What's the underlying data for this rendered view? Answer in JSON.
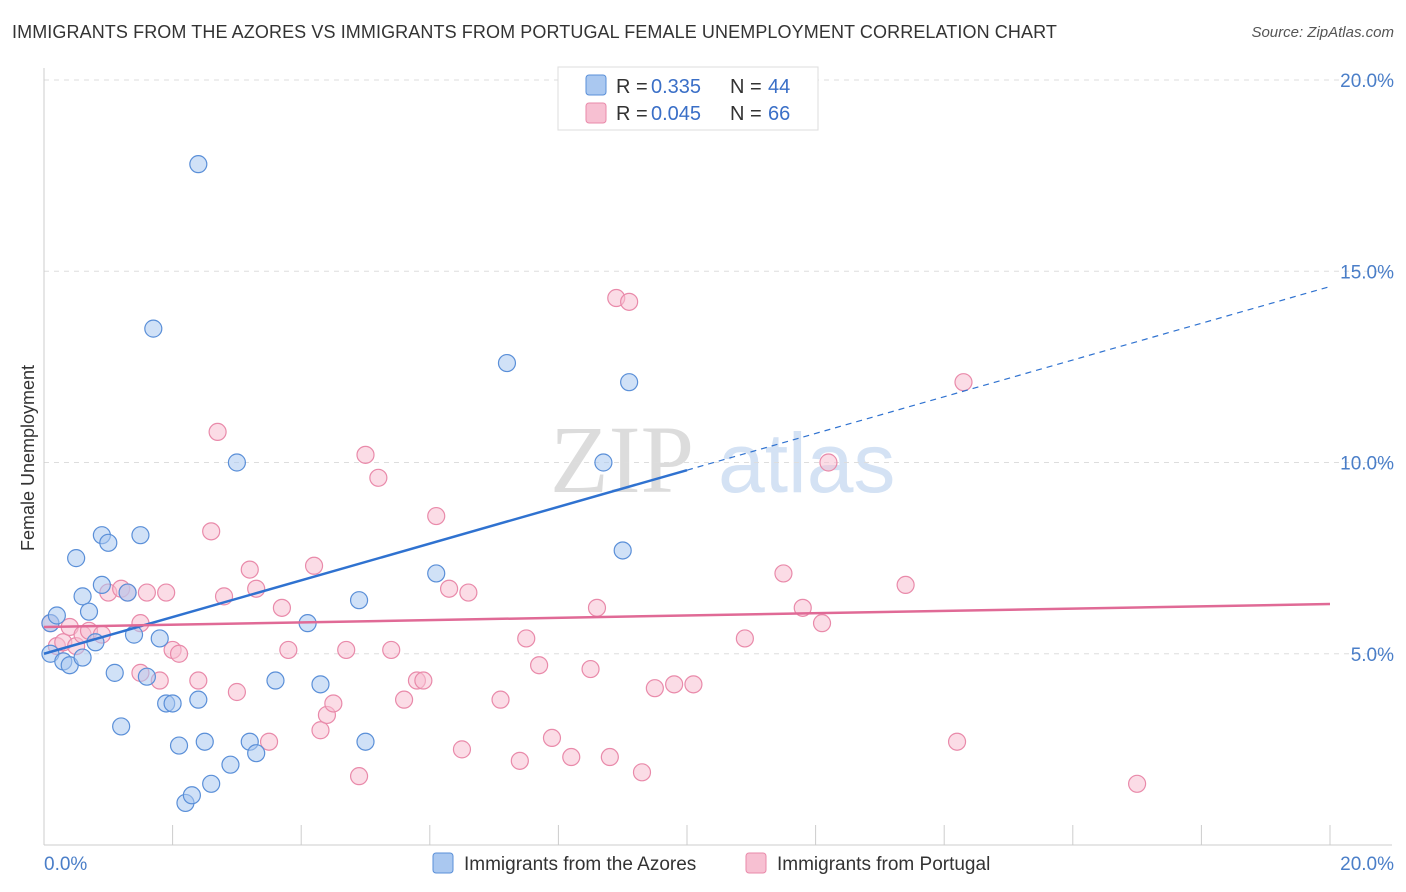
{
  "title": "IMMIGRANTS FROM THE AZORES VS IMMIGRANTS FROM PORTUGAL FEMALE UNEMPLOYMENT CORRELATION CHART",
  "source": "Source: ZipAtlas.com",
  "watermark": {
    "zip": "ZIP",
    "atlas": "atlas"
  },
  "colors": {
    "azores_fill": "#aac8f0",
    "azores_stroke": "#5a8fd8",
    "azores_line": "#2f72d0",
    "portugal_fill": "#f7c0d2",
    "portugal_stroke": "#e98aaa",
    "portugal_line": "#e06a96",
    "axis_text": "#4a7ec8",
    "grid": "#dddddd"
  },
  "chart_data": {
    "type": "scatter",
    "title": "IMMIGRANTS FROM THE AZORES VS IMMIGRANTS FROM PORTUGAL FEMALE UNEMPLOYMENT CORRELATION CHART",
    "xlabel": "",
    "ylabel": "Female Unemployment",
    "xlim": [
      0,
      20
    ],
    "ylim": [
      0,
      20
    ],
    "x_ticks": [
      "0.0%",
      "20.0%"
    ],
    "y_ticks": [
      {
        "value": 5,
        "label": "5.0%"
      },
      {
        "value": 10,
        "label": "10.0%"
      },
      {
        "value": 15,
        "label": "15.0%"
      },
      {
        "value": 20,
        "label": "20.0%"
      }
    ],
    "legend": [
      {
        "r_label": "R =",
        "r_value": "0.335",
        "n_label": "N =",
        "n_value": "44"
      },
      {
        "r_label": "R =",
        "r_value": "0.045",
        "n_label": "N =",
        "n_value": "66"
      }
    ],
    "series": [
      {
        "name": "Immigrants from the Azores",
        "trend": {
          "x0": 0,
          "y0": 5.0,
          "x1": 10,
          "y1": 9.8,
          "dash_to_x": 20,
          "dash_to_y": 14.6
        },
        "points": [
          [
            0.1,
            5.8
          ],
          [
            0.2,
            6.0
          ],
          [
            0.1,
            5.0
          ],
          [
            0.3,
            4.8
          ],
          [
            0.4,
            4.7
          ],
          [
            0.5,
            7.5
          ],
          [
            0.6,
            6.5
          ],
          [
            0.7,
            6.1
          ],
          [
            0.6,
            4.9
          ],
          [
            0.8,
            5.3
          ],
          [
            0.9,
            6.8
          ],
          [
            0.9,
            8.1
          ],
          [
            1.0,
            7.9
          ],
          [
            1.1,
            4.5
          ],
          [
            1.2,
            3.1
          ],
          [
            1.3,
            6.6
          ],
          [
            1.4,
            5.5
          ],
          [
            1.5,
            8.1
          ],
          [
            1.6,
            4.4
          ],
          [
            1.7,
            13.5
          ],
          [
            1.8,
            5.4
          ],
          [
            1.9,
            3.7
          ],
          [
            2.0,
            3.7
          ],
          [
            2.1,
            2.6
          ],
          [
            2.2,
            1.1
          ],
          [
            2.3,
            1.3
          ],
          [
            2.4,
            3.8
          ],
          [
            2.5,
            2.7
          ],
          [
            2.6,
            1.6
          ],
          [
            2.9,
            2.1
          ],
          [
            3.0,
            10.0
          ],
          [
            3.2,
            2.7
          ],
          [
            3.3,
            2.4
          ],
          [
            3.6,
            4.3
          ],
          [
            2.4,
            17.8
          ],
          [
            4.1,
            5.8
          ],
          [
            4.3,
            4.2
          ],
          [
            4.9,
            6.4
          ],
          [
            5.0,
            2.7
          ],
          [
            6.1,
            7.1
          ],
          [
            7.2,
            12.6
          ],
          [
            8.7,
            10.0
          ],
          [
            9.0,
            7.7
          ],
          [
            9.1,
            12.1
          ]
        ]
      },
      {
        "name": "Immigrants from Portugal",
        "trend": {
          "x0": 0,
          "y0": 5.7,
          "x1": 20,
          "y1": 6.3
        },
        "points": [
          [
            0.1,
            5.8
          ],
          [
            0.2,
            5.2
          ],
          [
            0.3,
            5.3
          ],
          [
            0.4,
            5.7
          ],
          [
            0.5,
            5.2
          ],
          [
            0.6,
            5.5
          ],
          [
            0.7,
            5.6
          ],
          [
            0.9,
            5.5
          ],
          [
            1.0,
            6.6
          ],
          [
            1.2,
            6.7
          ],
          [
            1.3,
            6.6
          ],
          [
            1.5,
            5.8
          ],
          [
            1.5,
            4.5
          ],
          [
            1.6,
            6.6
          ],
          [
            1.8,
            4.3
          ],
          [
            1.9,
            6.6
          ],
          [
            2.0,
            5.1
          ],
          [
            2.1,
            5.0
          ],
          [
            2.4,
            4.3
          ],
          [
            2.6,
            8.2
          ],
          [
            2.7,
            10.8
          ],
          [
            2.8,
            6.5
          ],
          [
            3.0,
            4.0
          ],
          [
            3.2,
            7.2
          ],
          [
            3.3,
            6.7
          ],
          [
            3.5,
            2.7
          ],
          [
            3.7,
            6.2
          ],
          [
            3.8,
            5.1
          ],
          [
            4.2,
            7.3
          ],
          [
            4.3,
            3.0
          ],
          [
            4.4,
            3.4
          ],
          [
            4.5,
            3.7
          ],
          [
            4.7,
            5.1
          ],
          [
            4.9,
            1.8
          ],
          [
            5.0,
            10.2
          ],
          [
            5.2,
            9.6
          ],
          [
            5.4,
            5.1
          ],
          [
            5.6,
            3.8
          ],
          [
            5.8,
            4.3
          ],
          [
            5.9,
            4.3
          ],
          [
            6.1,
            8.6
          ],
          [
            6.3,
            6.7
          ],
          [
            6.5,
            2.5
          ],
          [
            6.6,
            6.6
          ],
          [
            7.1,
            3.8
          ],
          [
            7.4,
            2.2
          ],
          [
            7.5,
            5.4
          ],
          [
            7.7,
            4.7
          ],
          [
            7.9,
            2.8
          ],
          [
            8.2,
            2.3
          ],
          [
            8.5,
            4.6
          ],
          [
            8.6,
            6.2
          ],
          [
            8.8,
            2.3
          ],
          [
            8.9,
            14.3
          ],
          [
            9.1,
            14.2
          ],
          [
            9.3,
            1.9
          ],
          [
            9.5,
            4.1
          ],
          [
            9.8,
            4.2
          ],
          [
            10.1,
            4.2
          ],
          [
            10.9,
            5.4
          ],
          [
            11.5,
            7.1
          ],
          [
            11.8,
            6.2
          ],
          [
            12.1,
            5.8
          ],
          [
            12.2,
            10.0
          ],
          [
            13.4,
            6.8
          ],
          [
            14.2,
            2.7
          ],
          [
            14.3,
            12.1
          ],
          [
            17.0,
            1.6
          ]
        ]
      }
    ]
  }
}
